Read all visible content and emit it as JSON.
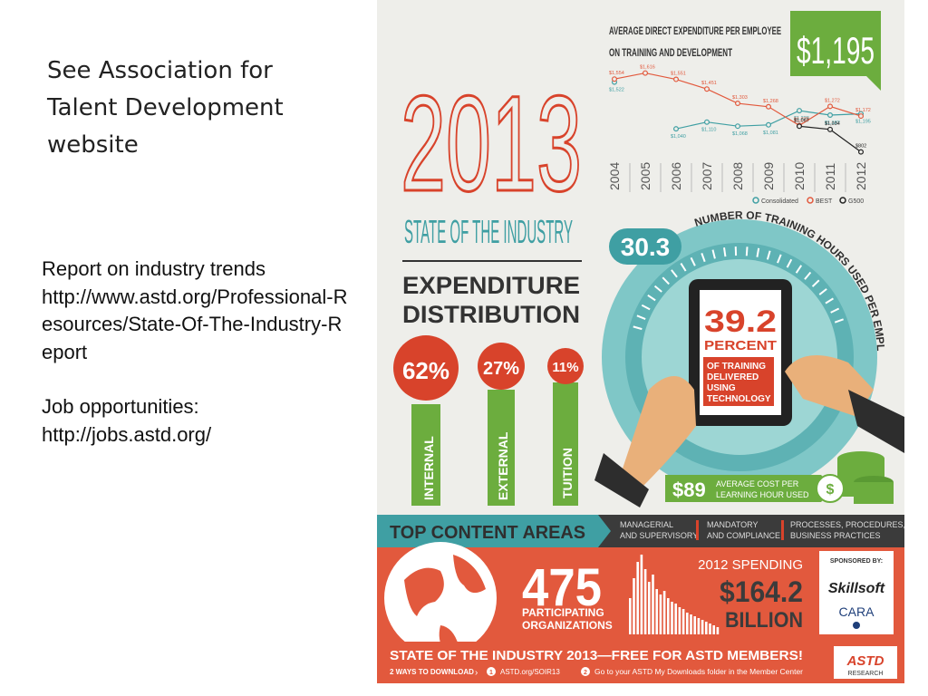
{
  "slide": {
    "heading": "See Association for Talent Development website",
    "report_text": "Report on industry trends",
    "report_url": "http://www.astd.org/Professional-Resources/State-Of-The-Industry-Report",
    "jobs_text": "Job opportunities:",
    "jobs_url": "http://jobs.astd.org/"
  },
  "infographic": {
    "year": "2013",
    "subtitle": "STATE OF THE INDUSTRY",
    "expenditure_title_line1": "EXPENDITURE",
    "expenditure_title_line2": "DISTRIBUTION",
    "circles": [
      {
        "value": "62%",
        "label": "INTERNAL",
        "share": 0.62
      },
      {
        "value": "27%",
        "label": "EXTERNAL",
        "share": 0.27
      },
      {
        "value": "11%",
        "label": "TUITION",
        "share": 0.11
      }
    ],
    "avg_title_line1": "AVERAGE DIRECT EXPENDITURE PER EMPLOYEE",
    "avg_title_line2": "ON TRAINING AND DEVELOPMENT",
    "avg_amount": "$1,195",
    "hours_value": "30.3",
    "hours_label": "NUMBER OF TRAINING HOURS USED PER EMPLOYEE",
    "tech_percent": "39.2",
    "tech_percent_label": "PERCENT",
    "tech_desc": [
      "OF TRAINING",
      "DELIVERED",
      "USING",
      "TECHNOLOGY"
    ],
    "cost_value": "$89",
    "cost_label_line1": "AVERAGE COST PER",
    "cost_label_line2": "LEARNING HOUR USED",
    "top_content_title": "TOP CONTENT AREAS",
    "content_areas": [
      [
        "MANAGERIAL",
        "AND SUPERVISORY"
      ],
      [
        "MANDATORY",
        "AND COMPLIANCE"
      ],
      [
        "PROCESSES, PROCEDURES,",
        "BUSINESS PRACTICES"
      ]
    ],
    "orgs_value": "475",
    "orgs_label_line1": "PARTICIPATING",
    "orgs_label_line2": "ORGANIZATIONS",
    "spending_title": "2012 SPENDING",
    "spending_value": "$164.2",
    "spending_unit": "BILLION",
    "sponsored_by": "SPONSORED BY:",
    "sponsor1": "Skillsoft",
    "sponsor2": "CARA",
    "footer_title": "STATE OF THE INDUSTRY 2013—FREE FOR ASTD MEMBERS!",
    "footer_ways": "2 WAYS TO DOWNLOAD",
    "footer_step1_num": "1",
    "footer_step1": "ASTD.org/SOIR13",
    "footer_step2_num": "2",
    "footer_step2": "Go to your ASTD My Downloads folder in the Member Center",
    "footer_logo": "ASTD",
    "footer_logo_sub": "RESEARCH",
    "colors": {
      "red": "#d8432b",
      "green": "#6cad3e",
      "teal": "#3f9fa3",
      "dark": "#2f2f2f",
      "orange": "#e2593d"
    }
  },
  "chart_data": {
    "type": "line",
    "title": "AVERAGE DIRECT EXPENDITURE PER EMPLOYEE ON TRAINING AND DEVELOPMENT",
    "x": [
      "2004",
      "2005",
      "2006",
      "2007",
      "2008",
      "2009",
      "2010",
      "2011",
      "2012"
    ],
    "series": [
      {
        "name": "Consolidated",
        "values": [
          1522,
          null,
          1040,
          1110,
          1068,
          1081,
          1228,
          1182,
          1195
        ],
        "labels": [
          "$1,522",
          "",
          "$1,040",
          "$1,110",
          "$1,068",
          "$1,081",
          "$1,228",
          "$1,182",
          "$1,195"
        ]
      },
      {
        "name": "BEST",
        "values": [
          1554,
          1616,
          1551,
          1451,
          1303,
          1268,
          1075,
          1272,
          1172
        ],
        "labels": [
          "$1,554",
          "$1,616",
          "$1,551",
          "$1,451",
          "$1,303",
          "$1,268",
          "$1,075",
          "$1,272",
          "$1,172"
        ]
      },
      {
        "name": "G500",
        "values": [
          null,
          null,
          null,
          null,
          null,
          null,
          1067,
          1034,
          802
        ],
        "labels": [
          "",
          "",
          "",
          "",
          "",
          "",
          "$1,067",
          "$1,034",
          "$802"
        ]
      }
    ],
    "legend": "bottom"
  }
}
